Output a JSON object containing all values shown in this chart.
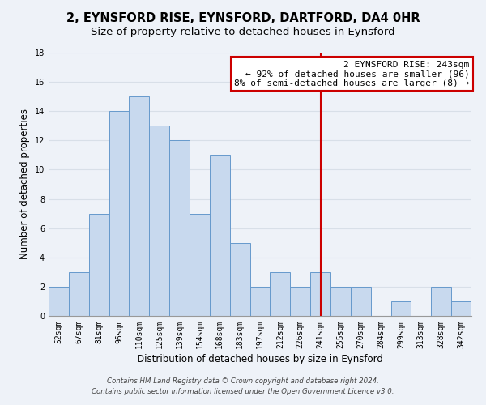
{
  "title": "2, EYNSFORD RISE, EYNSFORD, DARTFORD, DA4 0HR",
  "subtitle": "Size of property relative to detached houses in Eynsford",
  "xlabel": "Distribution of detached houses by size in Eynsford",
  "ylabel": "Number of detached properties",
  "bar_labels": [
    "52sqm",
    "67sqm",
    "81sqm",
    "96sqm",
    "110sqm",
    "125sqm",
    "139sqm",
    "154sqm",
    "168sqm",
    "183sqm",
    "197sqm",
    "212sqm",
    "226sqm",
    "241sqm",
    "255sqm",
    "270sqm",
    "284sqm",
    "299sqm",
    "313sqm",
    "328sqm",
    "342sqm"
  ],
  "bar_values": [
    2,
    3,
    7,
    14,
    15,
    13,
    12,
    7,
    11,
    5,
    2,
    3,
    2,
    3,
    2,
    2,
    0,
    1,
    0,
    2,
    1
  ],
  "bar_color": "#c8d9ee",
  "bar_edge_color": "#6699cc",
  "vline_x": 13,
  "vline_color": "#cc0000",
  "annotation_title": "2 EYNSFORD RISE: 243sqm",
  "annotation_line1": "← 92% of detached houses are smaller (96)",
  "annotation_line2": "8% of semi-detached houses are larger (8) →",
  "annotation_box_color": "#ffffff",
  "annotation_box_edge": "#cc0000",
  "ylim": [
    0,
    18
  ],
  "yticks": [
    0,
    2,
    4,
    6,
    8,
    10,
    12,
    14,
    16,
    18
  ],
  "footnote1": "Contains HM Land Registry data © Crown copyright and database right 2024.",
  "footnote2": "Contains public sector information licensed under the Open Government Licence v3.0.",
  "bg_color": "#eef2f8",
  "grid_color": "#d8dfe8",
  "title_fontsize": 10.5,
  "subtitle_fontsize": 9.5,
  "axis_label_fontsize": 8.5,
  "tick_fontsize": 7,
  "annotation_fontsize": 8,
  "footnote_fontsize": 6.2
}
